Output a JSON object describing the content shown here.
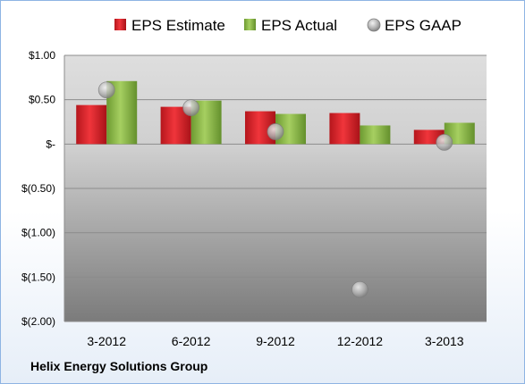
{
  "chart_data": {
    "type": "bar",
    "categories": [
      "3-2012",
      "6-2012",
      "9-2012",
      "12-2012",
      "3-2013"
    ],
    "series": [
      {
        "name": "EPS Estimate",
        "kind": "bar",
        "color": "#d9232a",
        "values": [
          0.44,
          0.42,
          0.37,
          0.35,
          0.16
        ]
      },
      {
        "name": "EPS Actual",
        "kind": "bar",
        "color": "#8cb84a",
        "values": [
          0.71,
          0.49,
          0.34,
          0.21,
          0.24
        ]
      },
      {
        "name": "EPS GAAP",
        "kind": "scatter",
        "color": "#a6a6a6",
        "values": [
          0.61,
          0.41,
          0.14,
          -1.64,
          0.02
        ]
      }
    ],
    "ylim": [
      -2.0,
      1.0
    ],
    "yticks": [
      1.0,
      0.5,
      0.0,
      -0.5,
      -1.0,
      -1.5,
      -2.0
    ],
    "ytick_labels": [
      "$1.00",
      "$0.50",
      "$-",
      "$(0.50)",
      "$(1.00)",
      "$(1.50)",
      "$(2.00)"
    ],
    "grid": true,
    "legend": "top"
  },
  "footer": "Helix Energy Solutions Group"
}
